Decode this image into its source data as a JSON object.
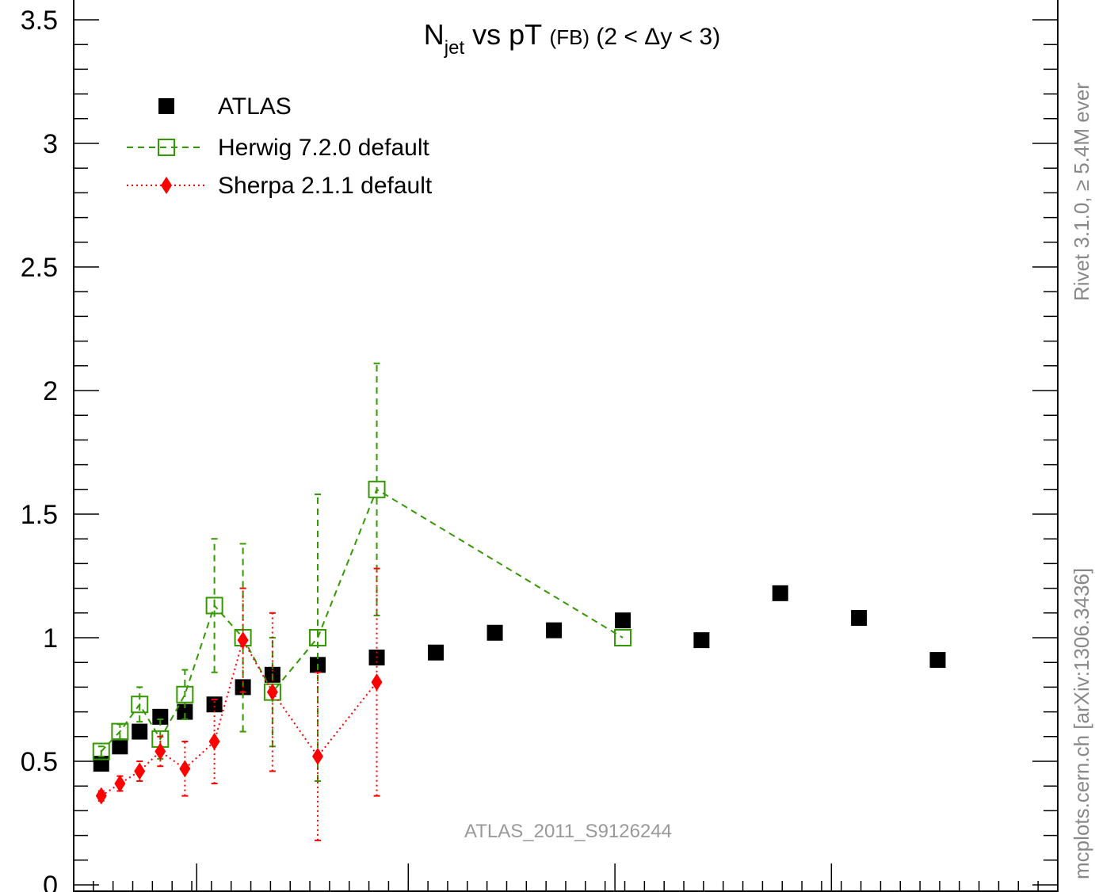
{
  "chart_data": {
    "type": "scatter",
    "title_main": "N",
    "title_sub": "jet",
    "title_mid": " vs pT ",
    "title_small": "(FB)",
    "title_range": " (2 < Δy < 3)",
    "ylim": [
      0,
      3.6
    ],
    "xlim": [
      0,
      100
    ],
    "yticks": [
      {
        "value": 0,
        "label": "0"
      },
      {
        "value": 0.5,
        "label": "0.5"
      },
      {
        "value": 1,
        "label": "1"
      },
      {
        "value": 1.5,
        "label": "1.5"
      },
      {
        "value": 2,
        "label": "2"
      },
      {
        "value": 2.5,
        "label": "2.5"
      },
      {
        "value": 3,
        "label": "3"
      },
      {
        "value": 3.5,
        "label": "3.5"
      }
    ],
    "series": [
      {
        "name": "ATLAS",
        "marker": "square",
        "color": "#000000",
        "line": "none",
        "x": [
          2.8,
          4.7,
          6.7,
          8.8,
          11.3,
          14.3,
          17.2,
          20.2,
          24.8,
          30.8,
          36.8,
          42.8,
          48.8,
          55.8,
          63.8,
          71.8,
          79.8,
          87.8
        ],
        "y": [
          0.49,
          0.56,
          0.62,
          0.68,
          0.7,
          0.73,
          0.8,
          0.85,
          0.89,
          0.92,
          0.94,
          1.02,
          1.03,
          1.07,
          0.99,
          1.18,
          1.08,
          0.91
        ],
        "err": [
          0,
          0,
          0,
          0,
          0,
          0,
          0,
          0,
          0,
          0,
          0,
          0,
          0,
          0,
          0,
          0,
          0,
          0
        ]
      },
      {
        "name": "Herwig 7.2.0 default",
        "marker": "open-square",
        "color": "#339900",
        "line": "dashed",
        "x": [
          2.8,
          4.7,
          6.7,
          8.8,
          11.3,
          14.3,
          17.2,
          20.2,
          24.8,
          30.8,
          55.8
        ],
        "y": [
          0.54,
          0.62,
          0.73,
          0.59,
          0.77,
          1.13,
          1.0,
          0.78,
          1.0,
          1.6,
          1.0
        ],
        "err": [
          0.02,
          0.03,
          0.07,
          0.08,
          0.1,
          0.27,
          0.38,
          0.22,
          0.58,
          0.51,
          0
        ]
      },
      {
        "name": "Sherpa 2.1.1 default",
        "marker": "diamond",
        "color": "#ff0000",
        "line": "dotted",
        "x": [
          2.8,
          4.7,
          6.7,
          8.8,
          11.3,
          14.3,
          17.2,
          20.2,
          24.8,
          30.8
        ],
        "y": [
          0.36,
          0.41,
          0.46,
          0.54,
          0.47,
          0.58,
          0.99,
          0.78,
          0.52,
          0.82
        ],
        "err": [
          0.02,
          0.03,
          0.04,
          0.06,
          0.11,
          0.17,
          0.21,
          0.32,
          0.34,
          0.46
        ]
      }
    ],
    "watermark": "ATLAS_2011_S9126244",
    "side_text_top": "Rivet 3.1.0, ≥ 5.4M ever",
    "side_text_bottom": "mcplots.cern.ch [arXiv:1306.3436]"
  }
}
